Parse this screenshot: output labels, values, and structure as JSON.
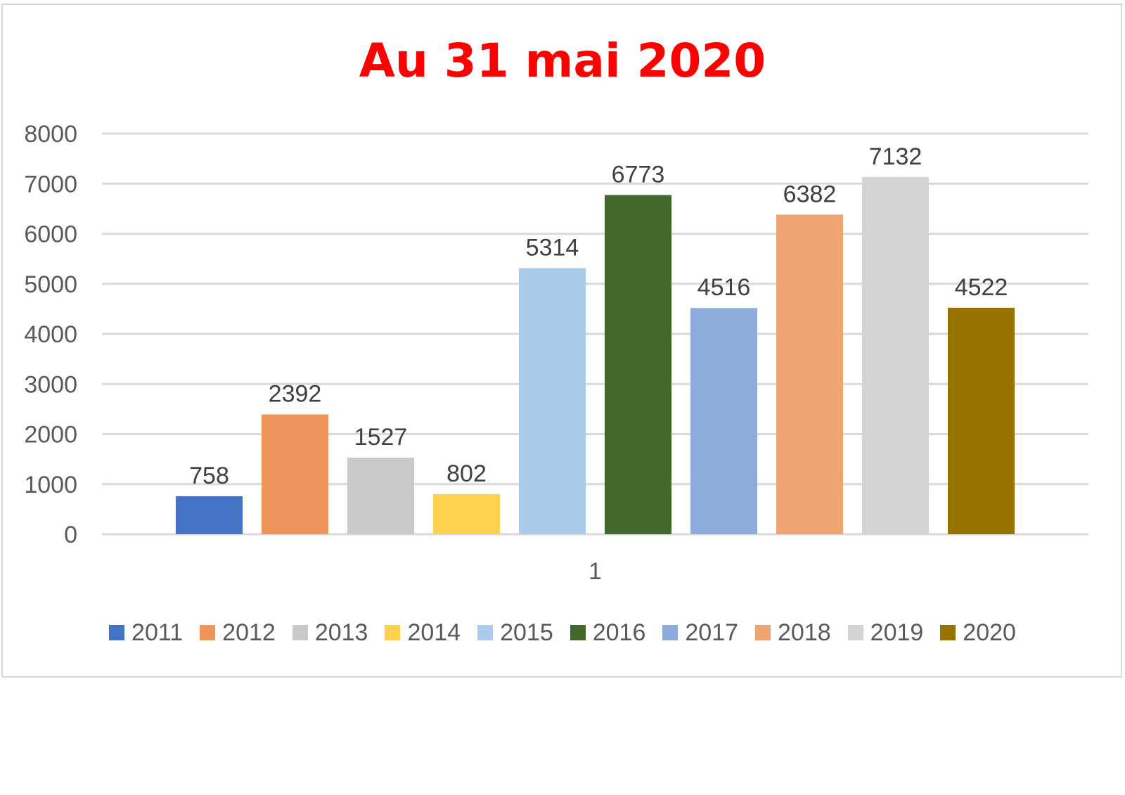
{
  "chart_data": {
    "type": "bar",
    "title": "Au 31 mai 2020",
    "categories": [
      "1"
    ],
    "ylim": [
      0,
      8000
    ],
    "yticks": [
      0,
      1000,
      2000,
      3000,
      4000,
      5000,
      6000,
      7000,
      8000
    ],
    "grid": true,
    "legend_position": "bottom",
    "data_labels": true,
    "series": [
      {
        "name": "2011",
        "values": [
          758
        ],
        "color": "#4472c4"
      },
      {
        "name": "2012",
        "values": [
          2392
        ],
        "color": "#ed955a"
      },
      {
        "name": "2013",
        "values": [
          1527
        ],
        "color": "#c9c9c9"
      },
      {
        "name": "2014",
        "values": [
          802
        ],
        "color": "#ffd14f"
      },
      {
        "name": "2015",
        "values": [
          5314
        ],
        "color": "#abcbea"
      },
      {
        "name": "2016",
        "values": [
          6773
        ],
        "color": "#43682b"
      },
      {
        "name": "2017",
        "values": [
          4516
        ],
        "color": "#8eabdc"
      },
      {
        "name": "2018",
        "values": [
          6382
        ],
        "color": "#f0a472"
      },
      {
        "name": "2019",
        "values": [
          7132
        ],
        "color": "#d4d4d4"
      },
      {
        "name": "2020",
        "values": [
          4522
        ],
        "color": "#997300"
      }
    ]
  }
}
